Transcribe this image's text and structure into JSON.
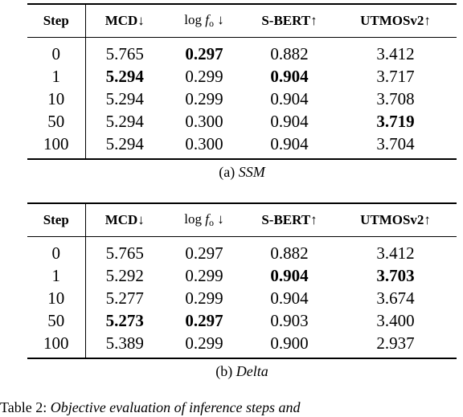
{
  "headers": {
    "step": "Step",
    "mcd": "MCD↓",
    "f0_prefix": "log",
    "f0_var": "f",
    "f0_sub": "o",
    "f0_arrow": "↓",
    "sbert": "S-BERT↑",
    "utmos": "UTMOSv2↑"
  },
  "tables": [
    {
      "caption_label": "(a)",
      "caption_name": "SSM",
      "rows": [
        {
          "step": "0",
          "mcd": "5.765",
          "f0": "0.297",
          "sbert": "0.882",
          "utmos": "3.412",
          "best": [
            "f0"
          ]
        },
        {
          "step": "1",
          "mcd": "5.294",
          "f0": "0.299",
          "sbert": "0.904",
          "utmos": "3.717",
          "best": [
            "mcd",
            "sbert"
          ]
        },
        {
          "step": "10",
          "mcd": "5.294",
          "f0": "0.299",
          "sbert": "0.904",
          "utmos": "3.708",
          "best": []
        },
        {
          "step": "50",
          "mcd": "5.294",
          "f0": "0.300",
          "sbert": "0.904",
          "utmos": "3.719",
          "best": [
            "utmos"
          ]
        },
        {
          "step": "100",
          "mcd": "5.294",
          "f0": "0.300",
          "sbert": "0.904",
          "utmos": "3.704",
          "best": []
        }
      ]
    },
    {
      "caption_label": "(b)",
      "caption_name": "Delta",
      "rows": [
        {
          "step": "0",
          "mcd": "5.765",
          "f0": "0.297",
          "sbert": "0.882",
          "utmos": "3.412",
          "best": []
        },
        {
          "step": "1",
          "mcd": "5.292",
          "f0": "0.299",
          "sbert": "0.904",
          "utmos": "3.703",
          "best": [
            "sbert",
            "utmos"
          ]
        },
        {
          "step": "10",
          "mcd": "5.277",
          "f0": "0.299",
          "sbert": "0.904",
          "utmos": "3.674",
          "best": []
        },
        {
          "step": "50",
          "mcd": "5.273",
          "f0": "0.297",
          "sbert": "0.903",
          "utmos": "3.400",
          "best": [
            "mcd",
            "f0"
          ]
        },
        {
          "step": "100",
          "mcd": "5.389",
          "f0": "0.299",
          "sbert": "0.900",
          "utmos": "2.937",
          "best": []
        }
      ]
    }
  ],
  "footer": {
    "label": "Table 2:",
    "text": "Objective evaluation of inference steps and"
  }
}
